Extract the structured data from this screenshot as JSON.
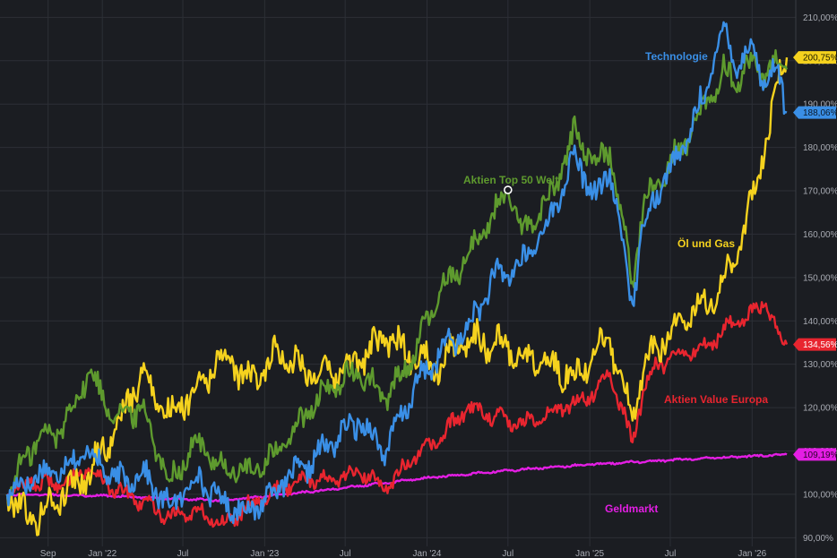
{
  "chart_data": {
    "type": "line",
    "title": "",
    "xlabel": "",
    "ylabel": "",
    "ylim": [
      88,
      214
    ],
    "grid": "on",
    "y_ticks": [
      {
        "value": 90,
        "label": "90,00%"
      },
      {
        "value": 100,
        "label": "100,00%"
      },
      {
        "value": 110,
        "label": "110,00%"
      },
      {
        "value": 120,
        "label": "120,00%"
      },
      {
        "value": 130,
        "label": "130,00%"
      },
      {
        "value": 140,
        "label": "140,00%"
      },
      {
        "value": 150,
        "label": "150,00%"
      },
      {
        "value": 160,
        "label": "160,00%"
      },
      {
        "value": 170,
        "label": "170,00%"
      },
      {
        "value": 180,
        "label": "180,00%"
      },
      {
        "value": 190,
        "label": "190,00%"
      },
      {
        "value": 200,
        "label": "200,00%"
      },
      {
        "value": 210,
        "label": "210,00%"
      }
    ],
    "x_ticks": [
      {
        "date": "2021-09-01",
        "label": "Sep"
      },
      {
        "date": "2022-01-01",
        "label": "Jan '22"
      },
      {
        "date": "2022-07-01",
        "label": "Jul"
      },
      {
        "date": "2023-01-01",
        "label": "Jan '23"
      },
      {
        "date": "2023-07-01",
        "label": "Jul"
      },
      {
        "date": "2024-01-01",
        "label": "Jan '24"
      },
      {
        "date": "2024-07-01",
        "label": "Jul"
      },
      {
        "date": "2025-01-01",
        "label": "Jan '25"
      },
      {
        "date": "2025-07-01",
        "label": "Jul"
      },
      {
        "date": "2026-01-01",
        "label": "Jan '26"
      }
    ],
    "x_range": [
      "2021-06-01",
      "2026-03-20"
    ],
    "series": [
      {
        "name": "Technologie",
        "color": "#3a8fe6",
        "end_value_label": "188,06%",
        "points": [
          [
            "2021-06-01",
            100
          ],
          [
            "2021-08-01",
            104
          ],
          [
            "2021-10-01",
            106
          ],
          [
            "2021-12-01",
            110
          ],
          [
            "2022-02-01",
            103
          ],
          [
            "2022-04-01",
            105
          ],
          [
            "2022-06-01",
            97
          ],
          [
            "2022-08-01",
            104
          ],
          [
            "2022-10-01",
            98
          ],
          [
            "2022-12-01",
            96
          ],
          [
            "2023-02-01",
            102
          ],
          [
            "2023-04-01",
            106
          ],
          [
            "2023-06-01",
            112
          ],
          [
            "2023-08-01",
            117
          ],
          [
            "2023-10-01",
            110
          ],
          [
            "2023-12-01",
            124
          ],
          [
            "2024-02-01",
            133
          ],
          [
            "2024-04-01",
            138
          ],
          [
            "2024-06-01",
            150
          ],
          [
            "2024-08-01",
            153
          ],
          [
            "2024-10-01",
            163
          ],
          [
            "2024-12-01",
            178
          ],
          [
            "2025-01-15",
            168
          ],
          [
            "2025-02-15",
            175
          ],
          [
            "2025-04-07",
            144
          ],
          [
            "2025-05-01",
            162
          ],
          [
            "2025-06-01",
            170
          ],
          [
            "2025-08-01",
            180
          ],
          [
            "2025-10-01",
            197
          ],
          [
            "2025-11-01",
            208
          ],
          [
            "2025-12-01",
            198
          ],
          [
            "2026-01-01",
            204
          ],
          [
            "2026-02-01",
            194
          ],
          [
            "2026-03-01",
            199
          ],
          [
            "2026-03-20",
            188.06
          ]
        ]
      },
      {
        "name": "Aktien Top 50 Welt",
        "color": "#5e9a2e",
        "end_value_label": "",
        "points": [
          [
            "2021-06-01",
            100
          ],
          [
            "2021-08-01",
            112
          ],
          [
            "2021-10-01",
            115
          ],
          [
            "2021-12-01",
            128
          ],
          [
            "2022-02-01",
            118
          ],
          [
            "2022-04-01",
            120
          ],
          [
            "2022-06-01",
            103
          ],
          [
            "2022-08-01",
            112
          ],
          [
            "2022-10-01",
            106
          ],
          [
            "2022-12-01",
            105
          ],
          [
            "2023-02-01",
            110
          ],
          [
            "2023-04-01",
            118
          ],
          [
            "2023-06-01",
            125
          ],
          [
            "2023-08-01",
            128
          ],
          [
            "2023-10-01",
            122
          ],
          [
            "2023-12-01",
            132
          ],
          [
            "2024-02-01",
            147
          ],
          [
            "2024-04-01",
            155
          ],
          [
            "2024-07-01",
            170
          ],
          [
            "2024-08-01",
            160
          ],
          [
            "2024-10-01",
            168
          ],
          [
            "2024-12-01",
            184
          ],
          [
            "2025-01-15",
            176
          ],
          [
            "2025-02-15",
            180
          ],
          [
            "2025-04-07",
            149
          ],
          [
            "2025-05-01",
            166
          ],
          [
            "2025-06-01",
            172
          ],
          [
            "2025-08-01",
            181
          ],
          [
            "2025-10-01",
            192
          ],
          [
            "2025-11-01",
            198
          ],
          [
            "2025-12-01",
            195
          ],
          [
            "2026-01-01",
            200
          ],
          [
            "2026-02-01",
            197
          ],
          [
            "2026-03-01",
            199
          ],
          [
            "2026-03-20",
            198
          ]
        ]
      },
      {
        "name": "Öl und Gas",
        "color": "#f5d21e",
        "end_value_label": "200,75%",
        "points": [
          [
            "2021-06-01",
            100
          ],
          [
            "2021-08-01",
            94
          ],
          [
            "2021-10-01",
            100
          ],
          [
            "2021-12-01",
            105
          ],
          [
            "2022-02-01",
            115
          ],
          [
            "2022-04-01",
            128
          ],
          [
            "2022-06-01",
            118
          ],
          [
            "2022-08-01",
            125
          ],
          [
            "2022-10-01",
            132
          ],
          [
            "2022-12-01",
            126
          ],
          [
            "2023-02-01",
            133
          ],
          [
            "2023-04-01",
            129
          ],
          [
            "2023-06-01",
            127
          ],
          [
            "2023-08-01",
            131
          ],
          [
            "2023-10-01",
            136
          ],
          [
            "2023-12-01",
            132
          ],
          [
            "2024-02-01",
            130
          ],
          [
            "2024-04-01",
            136
          ],
          [
            "2024-06-01",
            135
          ],
          [
            "2024-08-01",
            132
          ],
          [
            "2024-10-01",
            130
          ],
          [
            "2024-12-01",
            127
          ],
          [
            "2025-01-15",
            133
          ],
          [
            "2025-02-15",
            136
          ],
          [
            "2025-04-07",
            117
          ],
          [
            "2025-05-01",
            128
          ],
          [
            "2025-06-01",
            134
          ],
          [
            "2025-08-01",
            140
          ],
          [
            "2025-10-01",
            145
          ],
          [
            "2025-11-01",
            150
          ],
          [
            "2025-12-01",
            156
          ],
          [
            "2026-01-01",
            168
          ],
          [
            "2026-02-01",
            182
          ],
          [
            "2026-03-01",
            195
          ],
          [
            "2026-03-20",
            200.75
          ]
        ]
      },
      {
        "name": "Aktien Value Europa",
        "color": "#e8252f",
        "end_value_label": "134,56%",
        "points": [
          [
            "2021-06-01",
            100
          ],
          [
            "2021-08-01",
            103
          ],
          [
            "2021-10-01",
            102
          ],
          [
            "2021-12-01",
            106
          ],
          [
            "2022-02-01",
            101
          ],
          [
            "2022-04-01",
            98
          ],
          [
            "2022-06-01",
            95
          ],
          [
            "2022-08-01",
            96
          ],
          [
            "2022-10-01",
            93
          ],
          [
            "2022-12-01",
            98
          ],
          [
            "2023-02-01",
            101
          ],
          [
            "2023-04-01",
            104
          ],
          [
            "2023-06-01",
            103
          ],
          [
            "2023-08-01",
            105
          ],
          [
            "2023-10-01",
            102
          ],
          [
            "2023-12-01",
            108
          ],
          [
            "2024-02-01",
            113
          ],
          [
            "2024-04-01",
            120
          ],
          [
            "2024-06-01",
            118
          ],
          [
            "2024-08-01",
            116
          ],
          [
            "2024-10-01",
            119
          ],
          [
            "2024-12-01",
            121
          ],
          [
            "2025-01-15",
            124
          ],
          [
            "2025-02-15",
            128
          ],
          [
            "2025-04-07",
            112
          ],
          [
            "2025-05-01",
            124
          ],
          [
            "2025-06-01",
            130
          ],
          [
            "2025-08-01",
            132
          ],
          [
            "2025-10-01",
            135
          ],
          [
            "2025-11-01",
            138
          ],
          [
            "2025-12-01",
            140
          ],
          [
            "2026-01-01",
            142
          ],
          [
            "2026-02-01",
            144
          ],
          [
            "2026-03-01",
            137
          ],
          [
            "2026-03-20",
            134.56
          ]
        ]
      },
      {
        "name": "Geldmarkt",
        "color": "#e41ee4",
        "end_value_label": "109,19%",
        "points": [
          [
            "2021-06-01",
            100
          ],
          [
            "2022-01-01",
            99.7
          ],
          [
            "2022-07-01",
            98.9
          ],
          [
            "2022-10-01",
            98.6
          ],
          [
            "2023-01-01",
            99.5
          ],
          [
            "2023-07-01",
            101.5
          ],
          [
            "2024-01-01",
            103.8
          ],
          [
            "2024-07-01",
            105.5
          ],
          [
            "2025-01-01",
            106.9
          ],
          [
            "2025-07-01",
            107.9
          ],
          [
            "2026-01-01",
            108.8
          ],
          [
            "2026-03-20",
            109.19
          ]
        ]
      }
    ],
    "annotations": [
      {
        "text": "Technologie",
        "series": 0
      },
      {
        "text": "Aktien Top 50 Welt",
        "series": 1
      },
      {
        "text": "Öl und Gas",
        "series": 2
      },
      {
        "text": "Aktien Value Europa",
        "series": 3
      },
      {
        "text": "Geldmarkt",
        "series": 4
      }
    ],
    "marker": {
      "date": "2024-07-01",
      "value": 170.2,
      "color": "#ffffff"
    }
  }
}
